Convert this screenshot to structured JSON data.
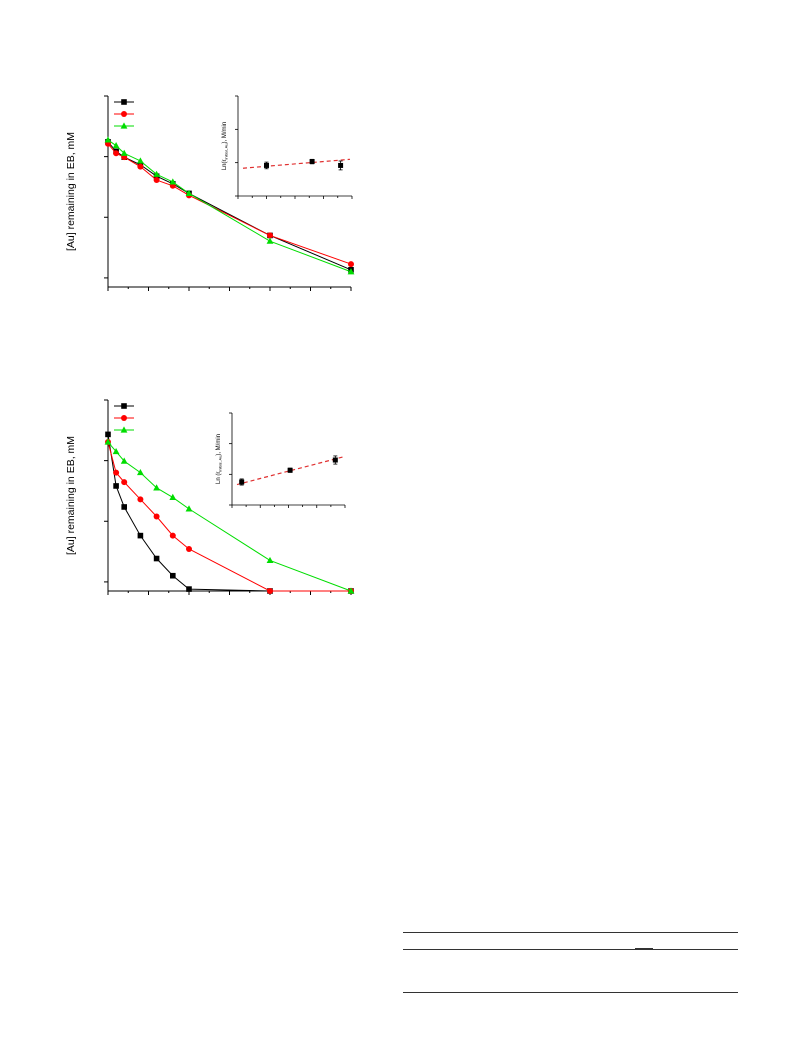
{
  "chart_data": [
    {
      "type": "line",
      "ylabel": "[Au] remaining in EB, mM",
      "xlabel": "",
      "title": "",
      "legend": "top-left",
      "x": [
        0,
        1,
        2,
        3,
        4,
        5,
        6,
        10,
        15
      ],
      "xlim": [
        0,
        15
      ],
      "ylim": [
        0,
        1
      ],
      "series": [
        {
          "color": "#000000",
          "marker": "square",
          "x": [
            0,
            0.5,
            1,
            2,
            3,
            4,
            5,
            10,
            15
          ],
          "values": [
            0.76,
            0.71,
            0.68,
            0.64,
            0.58,
            0.54,
            0.49,
            0.27,
            0.09
          ]
        },
        {
          "color": "#ff0000",
          "marker": "circle",
          "x": [
            0,
            0.5,
            1,
            2,
            3,
            4,
            5,
            10,
            15
          ],
          "values": [
            0.75,
            0.7,
            0.68,
            0.63,
            0.56,
            0.53,
            0.48,
            0.27,
            0.12
          ]
        },
        {
          "color": "#00dd00",
          "marker": "triangle",
          "x": [
            0,
            0.5,
            1,
            2,
            3,
            4,
            5,
            10,
            15
          ],
          "values": [
            0.77,
            0.74,
            0.7,
            0.66,
            0.59,
            0.55,
            0.49,
            0.24,
            0.08
          ]
        }
      ],
      "inset": {
        "ylabel": "Ln(r",
        "ylabel_sub": "initial, Au",
        "ylabel_tail": "), M/min",
        "x": [
          1,
          2.6,
          3.6
        ],
        "values": [
          0.55,
          0.62,
          0.55
        ],
        "errors": [
          0.06,
          0.04,
          0.08
        ],
        "fit": [
          0.5,
          0.66
        ],
        "xlim": [
          0,
          4
        ],
        "ylim": [
          0,
          1.8
        ],
        "fit_color": "#e03030"
      }
    },
    {
      "type": "line",
      "ylabel": "[Au] remaining in EB, mM",
      "xlabel": "",
      "title": "",
      "legend": "top-left",
      "xlim": [
        0,
        15
      ],
      "ylim": [
        0,
        1
      ],
      "series": [
        {
          "color": "#000000",
          "marker": "square",
          "x": [
            0,
            0.5,
            1,
            2,
            3,
            4,
            5,
            10,
            15
          ],
          "values": [
            0.82,
            0.55,
            0.44,
            0.29,
            0.17,
            0.08,
            0.01,
            0.0,
            0.0
          ]
        },
        {
          "color": "#ff0000",
          "marker": "circle",
          "x": [
            0,
            0.5,
            1,
            2,
            3,
            4,
            5,
            10,
            15
          ],
          "values": [
            0.78,
            0.62,
            0.57,
            0.48,
            0.39,
            0.29,
            0.22,
            0.0,
            0.0
          ]
        },
        {
          "color": "#00dd00",
          "marker": "triangle",
          "x": [
            0,
            0.5,
            1,
            2,
            3,
            4,
            5,
            10,
            15
          ],
          "values": [
            0.78,
            0.73,
            0.68,
            0.62,
            0.54,
            0.49,
            0.43,
            0.16,
            0.0
          ]
        }
      ],
      "inset": {
        "ylabel": "Ln (r",
        "ylabel_sub": "initial, Au",
        "ylabel_tail": "), M/min",
        "x": [
          0.3,
          1.8,
          3.2
        ],
        "values": [
          0.45,
          0.68,
          0.88
        ],
        "errors": [
          0.06,
          0.04,
          0.08
        ],
        "fit": [
          0.4,
          0.94
        ],
        "xlim": [
          0,
          3.5
        ],
        "ylim": [
          0,
          1.8
        ],
        "fit_color": "#e03030"
      }
    }
  ]
}
